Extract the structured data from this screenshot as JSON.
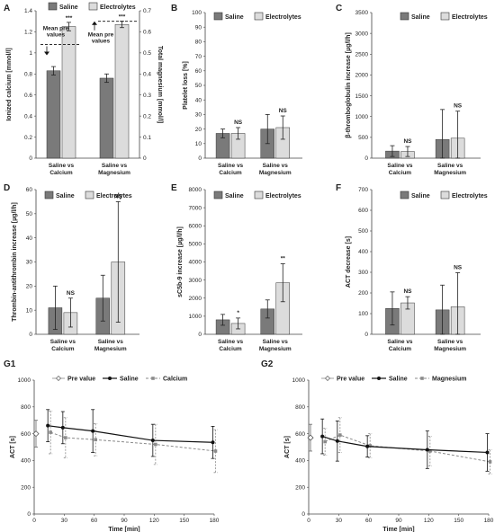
{
  "colors": {
    "saline": "#7a7a7a",
    "electrolytes": "#dcdcdc",
    "line_dark": "#111111",
    "line_gray": "#8a8a8a"
  },
  "panels": {
    "A": {
      "letter": "A",
      "legend": [
        "Saline",
        "Electrolytes"
      ],
      "ylabel_left": "Ionized calcium [mmol/l]",
      "ylabel_right": "Total magnesium [mmol/l]",
      "yticks_left": [
        "0",
        "0.2",
        "0.4",
        "0.6",
        "0.8",
        "1",
        "1.2",
        "1.4"
      ],
      "yticks_right": [
        "0",
        "0.1",
        "0.2",
        "0.3",
        "0.4",
        "0.5",
        "0.6",
        "0.7"
      ],
      "categories": [
        "Saline vs|Calcium",
        "Saline vs|Magnesium"
      ],
      "annotation": "Mean pre|values",
      "sig": [
        "***",
        "***"
      ]
    },
    "B": {
      "letter": "B",
      "legend": [
        "Saline",
        "Electrolytes"
      ],
      "ylabel": "Platelet loss [%]",
      "yticks": [
        "0",
        "10",
        "20",
        "30",
        "40",
        "50",
        "60",
        "70",
        "80",
        "90",
        "100"
      ],
      "categories": [
        "Saline vs|Calcium",
        "Saline vs|Magnesium"
      ],
      "sig": [
        "NS",
        "NS"
      ]
    },
    "C": {
      "letter": "C",
      "legend": [
        "Saline",
        "Electrolytes"
      ],
      "ylabel": "β-thromboglobulin increase [µg/l/h]",
      "yticks": [
        "0",
        "500",
        "1000",
        "1500",
        "2000",
        "2500",
        "3000",
        "3500"
      ],
      "categories": [
        "Saline vs|Calcium",
        "Saline vs|Magnesium"
      ],
      "sig": [
        "NS",
        "NS"
      ]
    },
    "D": {
      "letter": "D",
      "legend": [
        "Saline",
        "Electrolytes"
      ],
      "ylabel": "Thrombin-antithrombin increase [µg/l/h]",
      "yticks": [
        "0",
        "10",
        "20",
        "30",
        "40",
        "50",
        "60"
      ],
      "categories": [
        "Saline vs|Calcium",
        "Saline vs|Magnesium"
      ],
      "sig": [
        "NS",
        "NS"
      ]
    },
    "E": {
      "letter": "E",
      "legend": [
        "Saline",
        "Electrolytes"
      ],
      "ylabel": "sC5b-9 increase [µg/l/h]",
      "yticks": [
        "0",
        "1000",
        "2000",
        "3000",
        "4000",
        "5000",
        "6000",
        "7000",
        "8000"
      ],
      "categories": [
        "Saline vs|Calcium",
        "Saline vs|Magnesium"
      ],
      "sig": [
        "*",
        "**"
      ]
    },
    "F": {
      "letter": "F",
      "legend": [
        "Saline",
        "Electrolytes"
      ],
      "ylabel": "ACT decrease [s]",
      "yticks": [
        "0",
        "100",
        "200",
        "300",
        "400",
        "500",
        "600",
        "700"
      ],
      "categories": [
        "Saline vs|Calcium",
        "Saline vs|Magnesium"
      ],
      "sig": [
        "NS",
        "NS"
      ]
    },
    "G1": {
      "letter": "G1",
      "legend": [
        "Pre value",
        "Saline",
        "Calcium"
      ],
      "ylabel": "ACT [s]",
      "xlabel": "Time [min]",
      "yticks": [
        "0",
        "200",
        "400",
        "600",
        "800",
        "1000"
      ],
      "xticks": [
        "0",
        "30",
        "60",
        "90",
        "120",
        "150",
        "180"
      ]
    },
    "G2": {
      "letter": "G2",
      "legend": [
        "Pre value",
        "Saline",
        "Magnesium"
      ],
      "ylabel": "ACT [s]",
      "xlabel": "Time [min]",
      "yticks": [
        "0",
        "200",
        "400",
        "600",
        "800",
        "1000"
      ],
      "xticks": [
        "0",
        "30",
        "60",
        "90",
        "120",
        "150",
        "180"
      ]
    }
  },
  "chart_data": [
    {
      "panel": "A",
      "type": "bar",
      "categories": [
        "Saline vs Calcium",
        "Saline vs Magnesium"
      ],
      "axis_note": "Calcium pair on left axis (mmol/l), Magnesium pair on right axis (mmol/l)",
      "series": [
        {
          "name": "Saline",
          "values": [
            0.83,
            0.38
          ],
          "errors": [
            0.04,
            0.02
          ]
        },
        {
          "name": "Electrolytes",
          "values": [
            1.25,
            0.635
          ],
          "errors": [
            0.04,
            0.015
          ]
        }
      ],
      "reference_values": [
        1.08,
        0.65
      ],
      "ylim_left": [
        0,
        1.4
      ],
      "ylim_right": [
        0,
        0.7
      ]
    },
    {
      "panel": "B",
      "type": "bar",
      "categories": [
        "Saline vs Calcium",
        "Saline vs Magnesium"
      ],
      "series": [
        {
          "name": "Saline",
          "values": [
            17,
            20
          ],
          "errors": [
            3,
            10
          ]
        },
        {
          "name": "Electrolytes",
          "values": [
            17,
            21
          ],
          "errors": [
            4,
            8
          ]
        }
      ],
      "ylim": [
        0,
        100
      ]
    },
    {
      "panel": "C",
      "type": "bar",
      "categories": [
        "Saline vs Calcium",
        "Saline vs Magnesium"
      ],
      "series": [
        {
          "name": "Saline",
          "values": [
            170,
            450
          ],
          "errors": [
            130,
            720
          ]
        },
        {
          "name": "Electrolytes",
          "values": [
            160,
            480
          ],
          "errors": [
            120,
            650
          ]
        }
      ],
      "ylim": [
        0,
        3500
      ]
    },
    {
      "panel": "D",
      "type": "bar",
      "categories": [
        "Saline vs Calcium",
        "Saline vs Magnesium"
      ],
      "series": [
        {
          "name": "Saline",
          "values": [
            11,
            15
          ],
          "errors": [
            9,
            9.5
          ]
        },
        {
          "name": "Electrolytes",
          "values": [
            9,
            30
          ],
          "errors": [
            6,
            25
          ]
        }
      ],
      "ylim": [
        0,
        60
      ]
    },
    {
      "panel": "E",
      "type": "bar",
      "categories": [
        "Saline vs Calcium",
        "Saline vs Magnesium"
      ],
      "series": [
        {
          "name": "Saline",
          "values": [
            800,
            1400
          ],
          "errors": [
            300,
            500
          ]
        },
        {
          "name": "Electrolytes",
          "values": [
            600,
            2850
          ],
          "errors": [
            300,
            1050
          ]
        }
      ],
      "ylim": [
        0,
        8000
      ]
    },
    {
      "panel": "F",
      "type": "bar",
      "categories": [
        "Saline vs Calcium",
        "Saline vs Magnesium"
      ],
      "series": [
        {
          "name": "Saline",
          "values": [
            125,
            118
          ],
          "errors": [
            80,
            120
          ]
        },
        {
          "name": "Electrolytes",
          "values": [
            152,
            133
          ],
          "errors": [
            30,
            165
          ]
        }
      ],
      "ylim": [
        0,
        700
      ]
    },
    {
      "panel": "G1",
      "type": "line",
      "xlim": [
        0,
        180
      ],
      "ylim": [
        0,
        1000
      ],
      "series": [
        {
          "name": "Pre value",
          "x": [
            0
          ],
          "y": [
            600
          ],
          "errors": [
            100
          ]
        },
        {
          "name": "Saline",
          "x": [
            15,
            30,
            60,
            120,
            180
          ],
          "y": [
            660,
            645,
            620,
            550,
            535
          ],
          "errors": [
            120,
            120,
            160,
            120,
            120
          ]
        },
        {
          "name": "Calcium",
          "x": [
            15,
            30,
            60,
            120,
            180
          ],
          "y": [
            610,
            570,
            555,
            520,
            470
          ],
          "errors": [
            160,
            150,
            120,
            150,
            160
          ]
        }
      ]
    },
    {
      "panel": "G2",
      "type": "line",
      "xlim": [
        0,
        180
      ],
      "ylim": [
        0,
        1000
      ],
      "series": [
        {
          "name": "Pre value",
          "x": [
            0
          ],
          "y": [
            570
          ],
          "errors": [
            100
          ]
        },
        {
          "name": "Saline",
          "x": [
            15,
            30,
            60,
            120,
            180
          ],
          "y": [
            580,
            545,
            505,
            480,
            460
          ],
          "errors": [
            130,
            150,
            80,
            140,
            140
          ]
        },
        {
          "name": "Magnesium",
          "x": [
            15,
            30,
            60,
            120,
            180
          ],
          "y": [
            540,
            590,
            510,
            470,
            390
          ],
          "errors": [
            100,
            130,
            90,
            110,
            90
          ]
        }
      ]
    }
  ]
}
